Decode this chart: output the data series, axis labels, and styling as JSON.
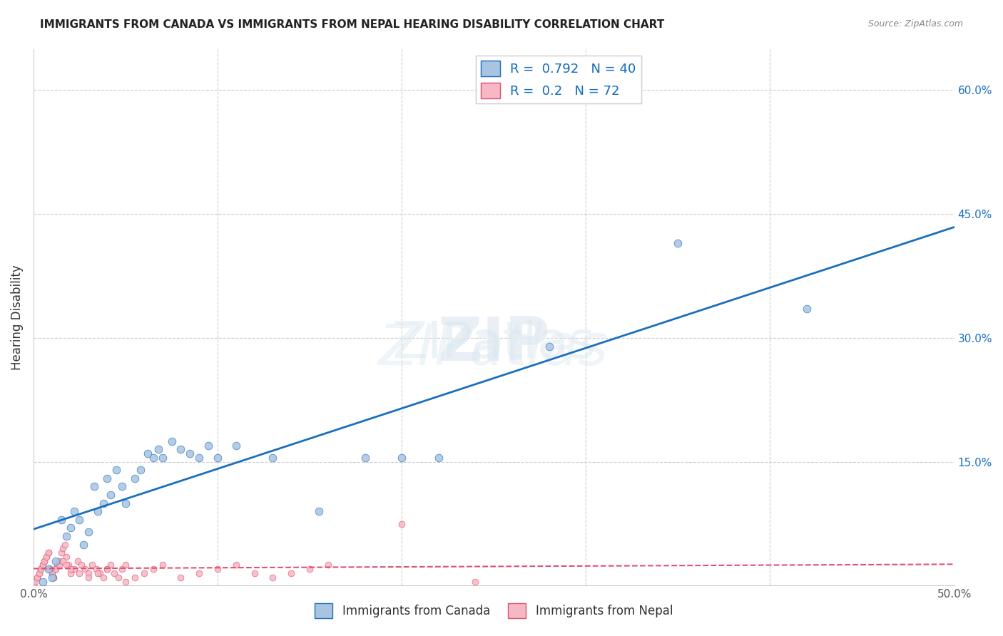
{
  "title": "IMMIGRANTS FROM CANADA VS IMMIGRANTS FROM NEPAL HEARING DISABILITY CORRELATION CHART",
  "source": "Source: ZipAtlas.com",
  "xlabel_bottom": "",
  "ylabel": "Hearing Disability",
  "xlim": [
    0,
    0.5
  ],
  "ylim": [
    0,
    0.65
  ],
  "x_ticks": [
    0.0,
    0.1,
    0.2,
    0.3,
    0.4,
    0.5
  ],
  "x_tick_labels": [
    "0.0%",
    "",
    "",
    "",
    "",
    "50.0%"
  ],
  "y_ticks_right": [
    0.0,
    0.15,
    0.3,
    0.45,
    0.6
  ],
  "y_tick_labels_right": [
    "",
    "15.0%",
    "30.0%",
    "45.0%",
    "60.0%"
  ],
  "canada_r": 0.792,
  "canada_n": 40,
  "nepal_r": 0.2,
  "nepal_n": 72,
  "canada_color": "#a8c4e0",
  "canada_line_color": "#1a6fbd",
  "nepal_color": "#f5b8c4",
  "nepal_line_color": "#e05070",
  "legend_label_canada": "Immigrants from Canada",
  "legend_label_nepal": "Immigrants from Nepal",
  "watermark": "ZIPatlas",
  "canada_scatter_x": [
    0.005,
    0.008,
    0.01,
    0.012,
    0.015,
    0.018,
    0.02,
    0.022,
    0.025,
    0.027,
    0.03,
    0.033,
    0.035,
    0.038,
    0.04,
    0.042,
    0.045,
    0.048,
    0.05,
    0.055,
    0.058,
    0.062,
    0.065,
    0.068,
    0.07,
    0.075,
    0.08,
    0.085,
    0.09,
    0.095,
    0.1,
    0.11,
    0.13,
    0.155,
    0.18,
    0.2,
    0.22,
    0.28,
    0.35,
    0.42
  ],
  "canada_scatter_y": [
    0.005,
    0.02,
    0.01,
    0.03,
    0.08,
    0.06,
    0.07,
    0.09,
    0.08,
    0.05,
    0.065,
    0.12,
    0.09,
    0.1,
    0.13,
    0.11,
    0.14,
    0.12,
    0.1,
    0.13,
    0.14,
    0.16,
    0.155,
    0.165,
    0.155,
    0.175,
    0.165,
    0.16,
    0.155,
    0.17,
    0.155,
    0.17,
    0.155,
    0.09,
    0.155,
    0.155,
    0.155,
    0.29,
    0.415,
    0.335
  ],
  "nepal_scatter_x": [
    0.0,
    0.002,
    0.003,
    0.004,
    0.005,
    0.006,
    0.007,
    0.008,
    0.009,
    0.01,
    0.011,
    0.012,
    0.013,
    0.014,
    0.015,
    0.016,
    0.017,
    0.018,
    0.019,
    0.02,
    0.022,
    0.024,
    0.026,
    0.028,
    0.03,
    0.032,
    0.034,
    0.036,
    0.038,
    0.04,
    0.042,
    0.044,
    0.046,
    0.048,
    0.05,
    0.055,
    0.06,
    0.065,
    0.07,
    0.08,
    0.09,
    0.1,
    0.11,
    0.12,
    0.13,
    0.14,
    0.15,
    0.16,
    0.2,
    0.24,
    0.0,
    0.001,
    0.002,
    0.003,
    0.004,
    0.005,
    0.006,
    0.007,
    0.008,
    0.009,
    0.01,
    0.011,
    0.012,
    0.014,
    0.016,
    0.018,
    0.02,
    0.025,
    0.03,
    0.035,
    0.04,
    0.05
  ],
  "nepal_scatter_y": [
    0.005,
    0.01,
    0.015,
    0.02,
    0.025,
    0.03,
    0.035,
    0.04,
    0.02,
    0.015,
    0.01,
    0.02,
    0.025,
    0.03,
    0.04,
    0.045,
    0.05,
    0.035,
    0.025,
    0.015,
    0.02,
    0.03,
    0.025,
    0.02,
    0.015,
    0.025,
    0.02,
    0.015,
    0.01,
    0.02,
    0.025,
    0.015,
    0.01,
    0.02,
    0.005,
    0.01,
    0.015,
    0.02,
    0.025,
    0.01,
    0.015,
    0.02,
    0.025,
    0.015,
    0.01,
    0.015,
    0.02,
    0.025,
    0.075,
    0.005,
    0.0,
    0.005,
    0.01,
    0.015,
    0.02,
    0.025,
    0.03,
    0.035,
    0.04,
    0.02,
    0.015,
    0.01,
    0.02,
    0.025,
    0.03,
    0.025,
    0.02,
    0.015,
    0.01,
    0.015,
    0.02,
    0.025
  ]
}
